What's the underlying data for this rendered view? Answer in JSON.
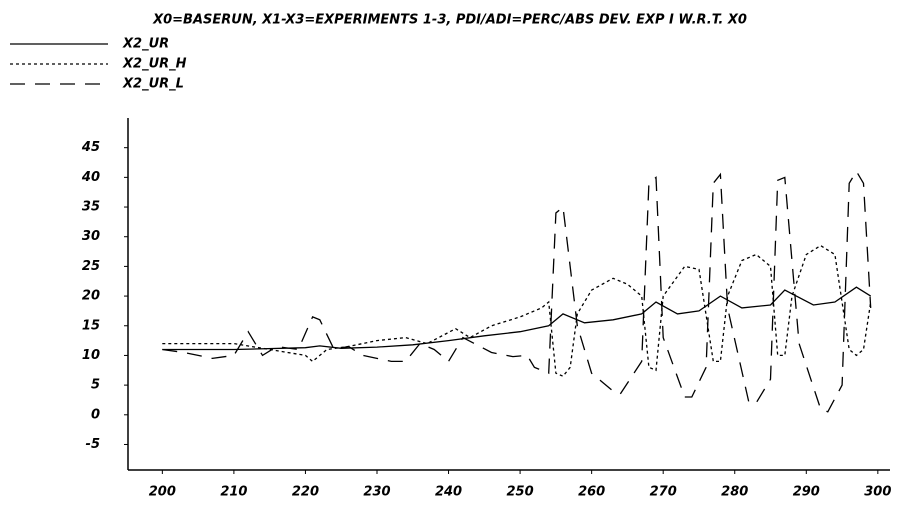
{
  "chart_data": {
    "type": "line",
    "title": "X0=BASERUN, X1-X3=EXPERIMENTS 1-3, PDI/ADI=PERC/ABS DEV. EXP I W.R.T. X0",
    "xlim": [
      195.2,
      301.7
    ],
    "xticks": [
      200,
      210,
      220,
      230,
      240,
      250,
      260,
      270,
      280,
      290,
      300
    ],
    "ylim": [
      -9.3,
      50
    ],
    "yticks": [
      -5,
      0,
      5,
      10,
      15,
      20,
      25,
      30,
      35,
      40,
      45
    ],
    "series": [
      {
        "name": "X2_UR",
        "color": "#000000",
        "dash": "solid",
        "x": [
          200,
          210,
          220,
          222,
          225,
          230,
          235,
          240,
          245,
          250,
          254,
          256,
          259,
          263,
          267,
          269,
          272,
          275,
          278,
          281,
          285,
          287,
          291,
          294,
          297,
          299
        ],
        "values": [
          11,
          11,
          11.3,
          11.6,
          11.2,
          11.4,
          11.8,
          12.5,
          13.3,
          14,
          15,
          17,
          15.5,
          16,
          17,
          19,
          17,
          17.5,
          20,
          18,
          18.5,
          21,
          18.5,
          19,
          21.5,
          20
        ]
      },
      {
        "name": "X2_UR_H",
        "color": "#000000",
        "dash": "dotted",
        "x": [
          200,
          205,
          210,
          215,
          220,
          221,
          223,
          226,
          230,
          234,
          237,
          241,
          243,
          246,
          250,
          253,
          254,
          255,
          256,
          257,
          258,
          260,
          263,
          265,
          267,
          268,
          269,
          270,
          273,
          275,
          277,
          278,
          279,
          281,
          283,
          285,
          286,
          287,
          288,
          290,
          292,
          294,
          296,
          297,
          298,
          299
        ],
        "values": [
          12,
          12,
          12,
          11,
          10,
          9,
          11,
          11.5,
          12.5,
          13,
          12,
          14.5,
          13,
          15,
          16.5,
          18,
          19,
          7,
          6.5,
          8,
          17,
          21,
          23,
          22,
          20,
          8,
          7.5,
          20,
          25,
          24.5,
          9,
          9,
          20,
          26,
          27,
          25,
          10,
          10,
          20,
          27,
          28.5,
          27,
          11,
          10,
          11,
          19
        ]
      },
      {
        "name": "X2_UR_L",
        "color": "#000000",
        "dash": "dashed",
        "x": [
          200,
          203,
          205,
          207,
          210,
          212,
          214,
          216,
          219,
          221,
          222,
          224,
          226,
          228,
          232,
          234,
          236,
          238,
          240,
          242,
          246,
          249,
          251,
          252,
          254,
          255,
          256,
          258,
          260,
          263,
          264,
          267,
          268,
          269,
          270,
          273,
          274,
          276,
          277,
          278,
          279,
          282,
          283,
          285,
          286,
          287,
          289,
          292,
          293,
          295,
          296,
          297,
          298,
          299
        ],
        "values": [
          11,
          10.5,
          10,
          9.5,
          10,
          14,
          10,
          11.5,
          11,
          16.5,
          16,
          11,
          11.5,
          10,
          9,
          9,
          12,
          11,
          9,
          13,
          10.5,
          9.8,
          10,
          8,
          7,
          34,
          35,
          15,
          7,
          4,
          3.5,
          9,
          39,
          40,
          13,
          3,
          3,
          8,
          39,
          40.5,
          18,
          2,
          2,
          6,
          39.5,
          40,
          12,
          1,
          0.5,
          5,
          39,
          41,
          39,
          18
        ]
      }
    ]
  }
}
